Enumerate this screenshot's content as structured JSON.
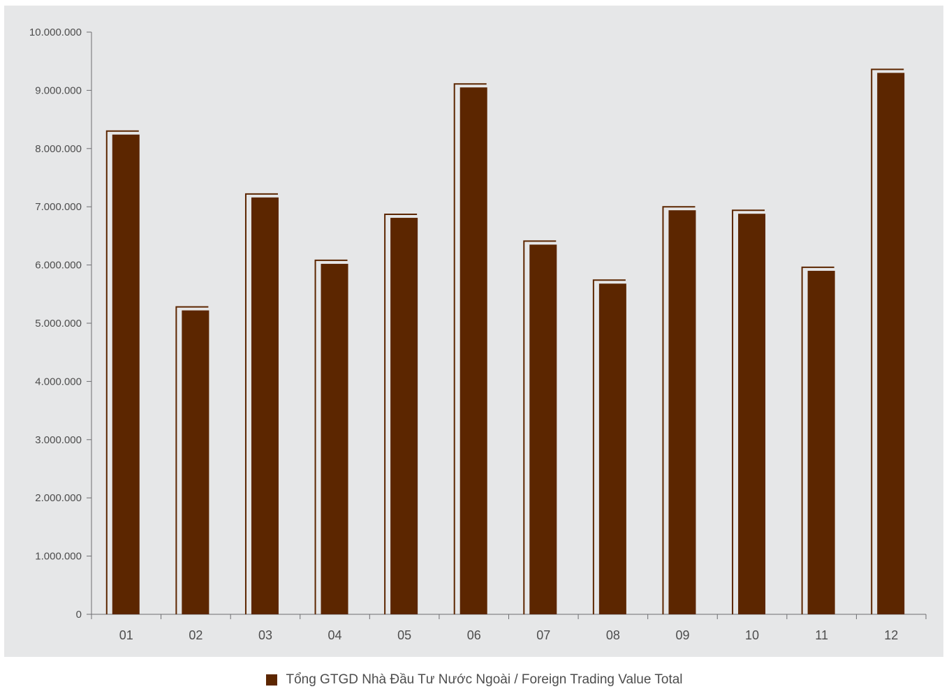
{
  "chart_data": {
    "type": "bar",
    "categories": [
      "01",
      "02",
      "03",
      "04",
      "05",
      "06",
      "07",
      "08",
      "09",
      "10",
      "11",
      "12"
    ],
    "series": [
      {
        "name": "Tổng GTGD Nhà Đầu Tư Nước Ngoài / Foreign Trading Value Total",
        "values": [
          8300000,
          5280000,
          7220000,
          6080000,
          6870000,
          9110000,
          6410000,
          5740000,
          7000000,
          6940000,
          5960000,
          9360000
        ]
      }
    ],
    "y_ticks": [
      "0",
      "1.000.000",
      "2.000.000",
      "3.000.000",
      "4.000.000",
      "5.000.000",
      "6.000.000",
      "7.000.000",
      "8.000.000",
      "9.000.000",
      "10.000.000"
    ],
    "ylim": [
      0,
      10000000
    ],
    "grid": false,
    "legend_position": "bottom-center",
    "colors": {
      "bar": "#5c2600",
      "bar_outline": "#5c2600",
      "panel_background": "#e6e7e8",
      "axis": "#6d6e71",
      "text": "#4d4d4d"
    }
  }
}
